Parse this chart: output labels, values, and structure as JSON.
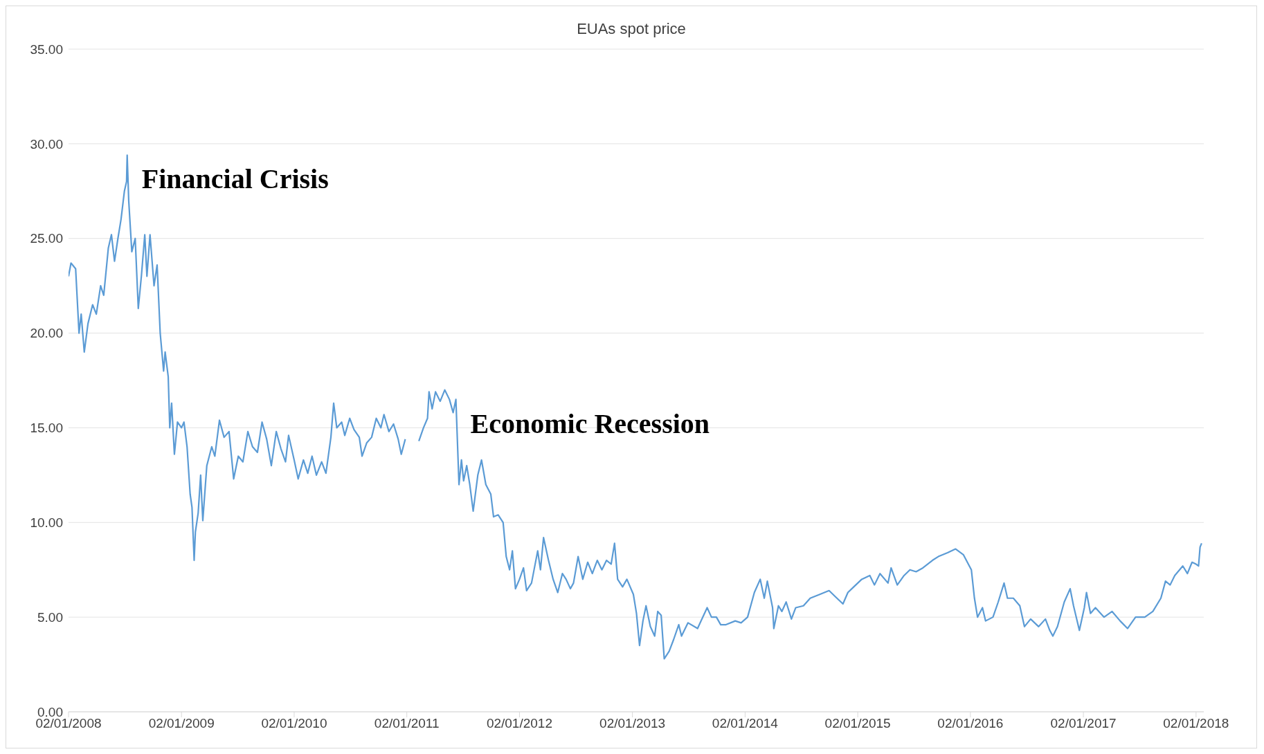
{
  "chart_data": {
    "type": "line",
    "title": "EUAs spot price",
    "x": [
      "2008-01-02",
      "2008-01-10",
      "2008-01-25",
      "2008-02-05",
      "2008-02-12",
      "2008-02-22",
      "2008-03-05",
      "2008-03-20",
      "2008-04-01",
      "2008-04-15",
      "2008-04-25",
      "2008-05-10",
      "2008-05-20",
      "2008-05-30",
      "2008-06-10",
      "2008-06-20",
      "2008-07-01",
      "2008-07-08",
      "2008-07-10",
      "2008-07-15",
      "2008-07-25",
      "2008-08-05",
      "2008-08-15",
      "2008-08-25",
      "2008-09-05",
      "2008-09-12",
      "2008-09-22",
      "2008-10-05",
      "2008-10-15",
      "2008-10-25",
      "2008-11-05",
      "2008-11-10",
      "2008-11-20",
      "2008-11-25",
      "2008-12-01",
      "2008-12-10",
      "2008-12-20",
      "2009-01-02",
      "2009-01-10",
      "2009-01-20",
      "2009-01-30",
      "2009-02-05",
      "2009-02-12",
      "2009-02-16",
      "2009-02-25",
      "2009-03-05",
      "2009-03-12",
      "2009-03-25",
      "2009-04-10",
      "2009-04-20",
      "2009-05-05",
      "2009-05-20",
      "2009-06-05",
      "2009-06-20",
      "2009-07-05",
      "2009-07-20",
      "2009-08-05",
      "2009-08-20",
      "2009-09-05",
      "2009-09-20",
      "2009-10-05",
      "2009-10-20",
      "2009-11-05",
      "2009-11-20",
      "2009-12-05",
      "2009-12-15",
      "2010-01-02",
      "2010-01-15",
      "2010-02-01",
      "2010-02-15",
      "2010-03-01",
      "2010-03-15",
      "2010-04-01",
      "2010-04-15",
      "2010-05-01",
      "2010-05-10",
      "2010-05-20",
      "2010-06-05",
      "2010-06-15",
      "2010-07-01",
      "2010-07-15",
      "2010-08-01",
      "2010-08-10",
      "2010-08-25",
      "2010-09-10",
      "2010-09-25",
      "2010-10-10",
      "2010-10-20",
      "2010-11-05",
      "2010-11-20",
      "2010-12-05",
      "2010-12-15",
      "2010-12-28",
      "2011-01-25",
      "2011-02-10",
      "2011-02-25",
      "2011-03-10",
      "2011-03-15",
      "2011-03-25",
      "2011-04-05",
      "2011-04-20",
      "2011-05-05",
      "2011-05-20",
      "2011-06-01",
      "2011-06-10",
      "2011-06-20",
      "2011-06-28",
      "2011-07-05",
      "2011-07-15",
      "2011-07-25",
      "2011-08-05",
      "2011-08-20",
      "2011-09-01",
      "2011-09-15",
      "2011-10-01",
      "2011-10-10",
      "2011-10-25",
      "2011-11-10",
      "2011-11-20",
      "2011-12-01",
      "2011-12-10",
      "2011-12-20",
      "2012-01-02",
      "2012-01-15",
      "2012-01-25",
      "2012-02-10",
      "2012-03-01",
      "2012-03-10",
      "2012-03-20",
      "2012-04-05",
      "2012-04-20",
      "2012-05-05",
      "2012-05-20",
      "2012-06-01",
      "2012-06-15",
      "2012-06-25",
      "2012-07-10",
      "2012-07-25",
      "2012-08-10",
      "2012-08-25",
      "2012-09-10",
      "2012-09-25",
      "2012-10-10",
      "2012-10-25",
      "2012-11-05",
      "2012-11-15",
      "2012-12-01",
      "2012-12-15",
      "2013-01-05",
      "2013-01-15",
      "2013-01-25",
      "2013-02-05",
      "2013-02-15",
      "2013-03-01",
      "2013-03-15",
      "2013-03-25",
      "2013-04-05",
      "2013-04-15",
      "2013-05-01",
      "2013-05-15",
      "2013-06-01",
      "2013-06-10",
      "2013-07-01",
      "2013-08-01",
      "2013-09-01",
      "2013-09-15",
      "2013-10-01",
      "2013-10-15",
      "2013-11-01",
      "2013-12-01",
      "2013-12-20",
      "2014-01-10",
      "2014-02-01",
      "2014-02-20",
      "2014-03-05",
      "2014-03-15",
      "2014-04-01",
      "2014-04-05",
      "2014-04-20",
      "2014-05-01",
      "2014-05-15",
      "2014-06-01",
      "2014-06-15",
      "2014-07-10",
      "2014-08-01",
      "2014-09-01",
      "2014-10-01",
      "2014-10-20",
      "2014-11-15",
      "2014-12-01",
      "2014-12-20",
      "2015-01-15",
      "2015-02-10",
      "2015-02-25",
      "2015-03-15",
      "2015-04-10",
      "2015-04-20",
      "2015-05-10",
      "2015-06-01",
      "2015-06-20",
      "2015-07-10",
      "2015-08-01",
      "2015-09-01",
      "2015-09-20",
      "2015-10-20",
      "2015-11-15",
      "2015-12-10",
      "2016-01-05",
      "2016-01-15",
      "2016-01-25",
      "2016-02-10",
      "2016-02-20",
      "2016-03-15",
      "2016-04-01",
      "2016-04-20",
      "2016-05-01",
      "2016-05-20",
      "2016-06-10",
      "2016-06-25",
      "2016-07-15",
      "2016-08-10",
      "2016-09-01",
      "2016-09-15",
      "2016-09-25",
      "2016-10-10",
      "2016-11-01",
      "2016-11-20",
      "2016-12-01",
      "2016-12-20",
      "2017-01-05",
      "2017-01-12",
      "2017-01-25",
      "2017-02-10",
      "2017-03-10",
      "2017-04-05",
      "2017-05-01",
      "2017-05-25",
      "2017-06-20",
      "2017-07-20",
      "2017-08-15",
      "2017-09-10",
      "2017-09-25",
      "2017-10-10",
      "2017-10-25",
      "2017-11-20",
      "2017-12-05",
      "2017-12-20",
      "2018-01-02",
      "2018-01-10",
      "2018-01-15",
      "2018-01-20"
    ],
    "series": [
      {
        "color": "#5b9bd5",
        "values": [
          23.0,
          23.7,
          23.4,
          20.0,
          21.0,
          19.0,
          20.5,
          21.5,
          21.0,
          22.5,
          22.0,
          24.5,
          25.2,
          23.8,
          25.0,
          26.0,
          27.5,
          28.0,
          29.4,
          27.0,
          24.3,
          25.0,
          21.3,
          23.0,
          25.2,
          23.0,
          25.2,
          22.5,
          23.6,
          20.0,
          18.0,
          19.0,
          17.7,
          15.0,
          16.3,
          13.6,
          15.3,
          15.0,
          15.3,
          14.0,
          11.5,
          10.8,
          8.0,
          9.5,
          10.5,
          12.5,
          10.1,
          13.0,
          14.0,
          13.5,
          15.4,
          14.5,
          14.8,
          12.3,
          13.5,
          13.2,
          14.8,
          14.0,
          13.7,
          15.3,
          14.4,
          13.0,
          14.8,
          13.9,
          13.2,
          14.6,
          13.3,
          12.3,
          13.3,
          12.6,
          13.5,
          12.5,
          13.2,
          12.6,
          14.5,
          16.3,
          15.0,
          15.3,
          14.6,
          15.5,
          14.9,
          14.5,
          13.5,
          14.2,
          14.5,
          15.5,
          15.0,
          15.7,
          14.8,
          15.2,
          14.4,
          13.6,
          14.4,
          null,
          14.3,
          15.0,
          15.5,
          16.9,
          16.0,
          16.9,
          16.4,
          17.0,
          16.5,
          15.8,
          16.5,
          12.0,
          13.3,
          12.2,
          13.0,
          12.0,
          10.6,
          12.5,
          13.3,
          12.0,
          11.5,
          10.3,
          10.4,
          10.0,
          8.2,
          7.5,
          8.5,
          6.5,
          7.0,
          7.6,
          6.4,
          6.8,
          8.5,
          7.5,
          9.2,
          8.0,
          7.0,
          6.3,
          7.3,
          7.0,
          6.5,
          6.8,
          8.2,
          7.0,
          7.9,
          7.3,
          8.0,
          7.5,
          8.0,
          7.8,
          8.9,
          7.0,
          6.6,
          7.0,
          6.2,
          5.2,
          3.5,
          4.8,
          5.6,
          4.5,
          4.0,
          5.3,
          5.1,
          2.8,
          3.2,
          3.8,
          4.6,
          4.0,
          4.7,
          4.4,
          5.5,
          5.0,
          5.0,
          4.6,
          4.6,
          4.8,
          4.7,
          5.0,
          6.3,
          7.0,
          6.0,
          6.9,
          5.5,
          4.4,
          5.6,
          5.3,
          5.8,
          4.9,
          5.5,
          5.6,
          6.0,
          6.2,
          6.4,
          6.1,
          5.7,
          6.3,
          6.6,
          7.0,
          7.2,
          6.7,
          7.3,
          6.8,
          7.6,
          6.7,
          7.2,
          7.5,
          7.4,
          7.6,
          8.0,
          8.2,
          8.4,
          8.6,
          8.3,
          7.5,
          6.0,
          5.0,
          5.5,
          4.8,
          5.0,
          5.8,
          6.8,
          6.0,
          6.0,
          5.6,
          4.5,
          4.9,
          4.5,
          4.9,
          4.3,
          4.0,
          4.5,
          5.8,
          6.5,
          5.6,
          4.3,
          5.5,
          6.3,
          5.2,
          5.5,
          5.0,
          5.3,
          4.8,
          4.4,
          5.0,
          5.0,
          5.3,
          6.0,
          6.9,
          6.7,
          7.2,
          7.7,
          7.3,
          7.9,
          7.8,
          7.7,
          8.7,
          8.9
        ]
      }
    ],
    "xlim": [
      "2008-01-02",
      "2018-01-27"
    ],
    "xticks": [
      {
        "value": "2008-01-02",
        "label": "02/01/2008"
      },
      {
        "value": "2009-01-02",
        "label": "02/01/2009"
      },
      {
        "value": "2010-01-02",
        "label": "02/01/2010"
      },
      {
        "value": "2011-01-02",
        "label": "02/01/2011"
      },
      {
        "value": "2012-01-02",
        "label": "02/01/2012"
      },
      {
        "value": "2013-01-02",
        "label": "02/01/2013"
      },
      {
        "value": "2014-01-02",
        "label": "02/01/2014"
      },
      {
        "value": "2015-01-02",
        "label": "02/01/2015"
      },
      {
        "value": "2016-01-02",
        "label": "02/01/2016"
      },
      {
        "value": "2017-01-02",
        "label": "02/01/2017"
      },
      {
        "value": "2018-01-02",
        "label": "02/01/2018"
      }
    ],
    "ylim": [
      0,
      35
    ],
    "yticks": [
      {
        "value": 0,
        "label": "0.00"
      },
      {
        "value": 5,
        "label": "5.00"
      },
      {
        "value": 10,
        "label": "10.00"
      },
      {
        "value": 15,
        "label": "15.00"
      },
      {
        "value": 20,
        "label": "20.00"
      },
      {
        "value": 25,
        "label": "25.00"
      },
      {
        "value": 30,
        "label": "30.00"
      },
      {
        "value": 35,
        "label": "35.00"
      }
    ],
    "grid": "y",
    "line_style": "solid",
    "marker": "none",
    "annotations": [
      {
        "text": "Financial Crisis",
        "x": "2008-07-10",
        "y": 29.4
      },
      {
        "text": "Economic Recession",
        "x": "2011-06-10",
        "y": 16.5
      }
    ]
  }
}
